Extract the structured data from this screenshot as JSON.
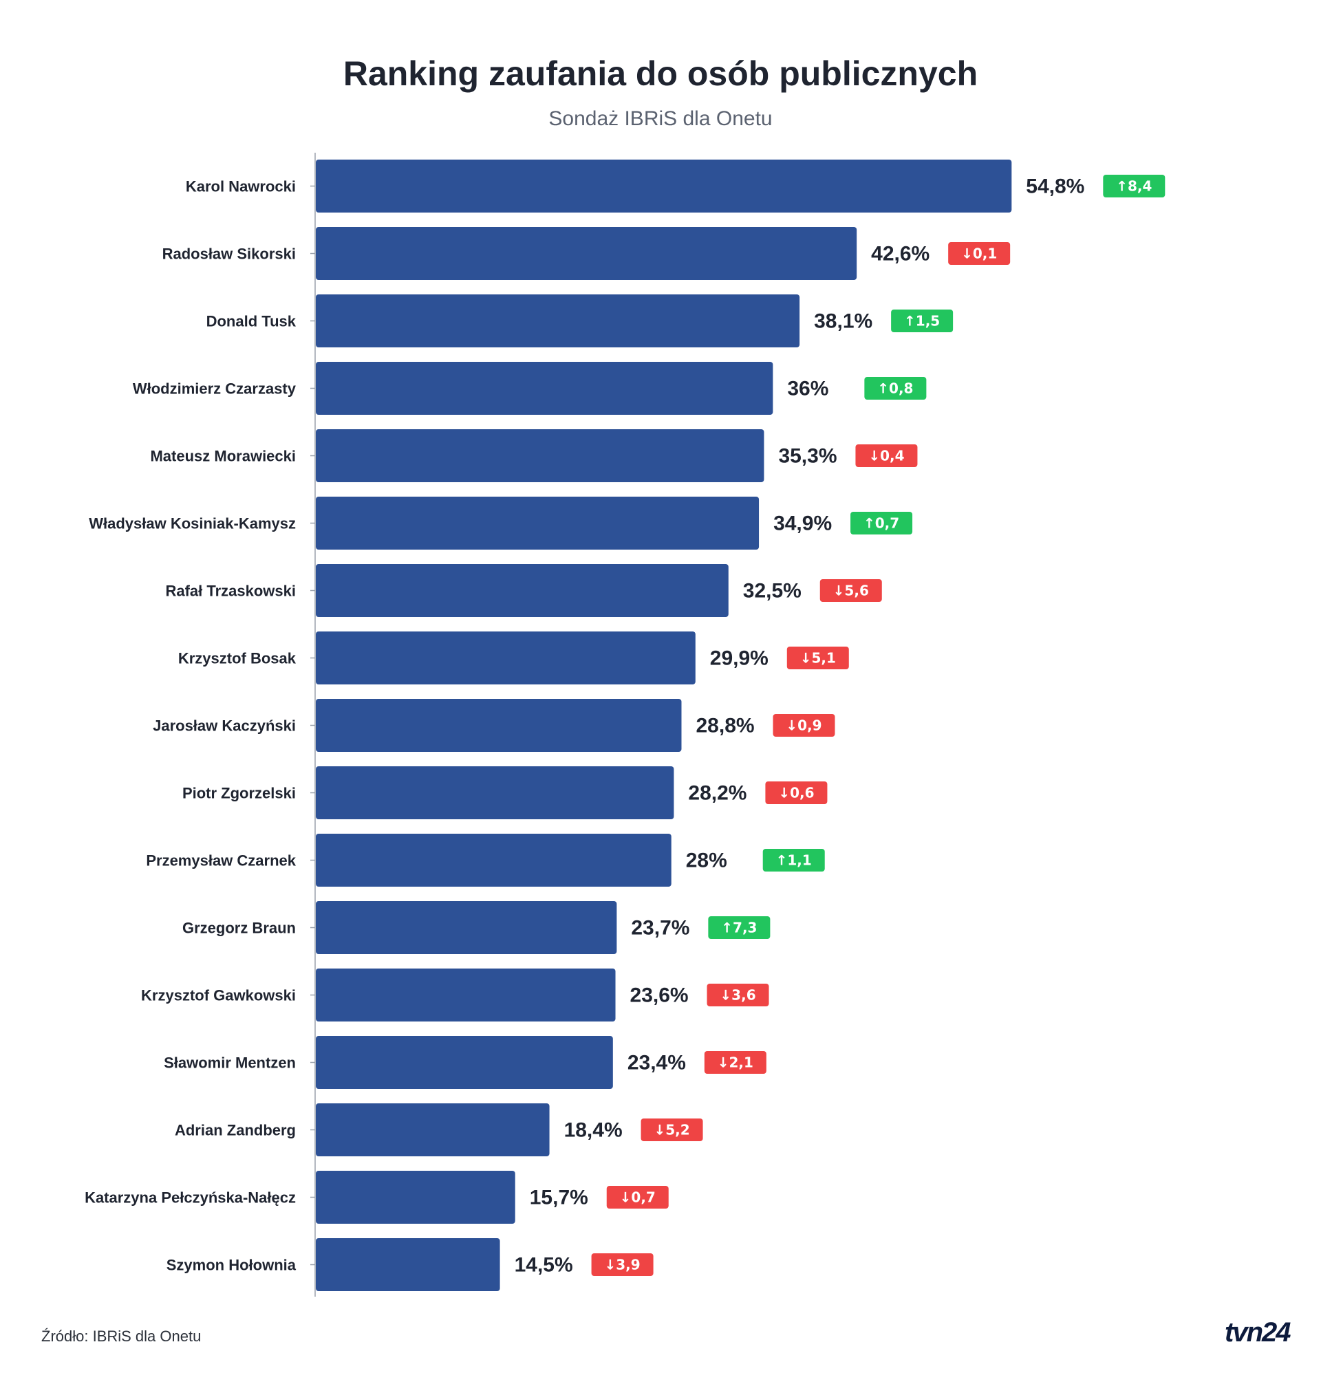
{
  "title": "Ranking zaufania do osób publicznych",
  "subtitle": "Sondaż IBRiS dla Onetu",
  "source": "Źródło: IBRiS dla Onetu",
  "logo": "tvn24",
  "colors": {
    "bar": "#2d5196",
    "up": "#22c55e",
    "down": "#ef4444",
    "axis": "#9aa1ab",
    "text": "#1f2430"
  },
  "chart_data": {
    "type": "bar",
    "orientation": "horizontal",
    "categories": [
      "Karol Nawrocki",
      "Radosław Sikorski",
      "Donald Tusk",
      "Włodzimierz Czarzasty",
      "Mateusz Morawiecki",
      "Władysław Kosiniak-Kamysz",
      "Rafał Trzaskowski",
      "Krzysztof Bosak",
      "Jarosław Kaczyński",
      "Piotr Zgorzelski",
      "Przemysław Czarnek",
      "Grzegorz Braun",
      "Krzysztof Gawkowski",
      "Sławomir Mentzen",
      "Adrian Zandberg",
      "Katarzyna Pełczyńska-Nałęcz",
      "Szymon Hołownia"
    ],
    "values": [
      54.8,
      42.6,
      38.1,
      36,
      35.3,
      34.9,
      32.5,
      29.9,
      28.8,
      28.2,
      28,
      23.7,
      23.6,
      23.4,
      18.4,
      15.7,
      14.5
    ],
    "value_labels": [
      "54,8%",
      "42,6%",
      "38,1%",
      "36%",
      "35,3%",
      "34,9%",
      "32,5%",
      "29,9%",
      "28,8%",
      "28,2%",
      "28%",
      "23,7%",
      "23,6%",
      "23,4%",
      "18,4%",
      "15,7%",
      "14,5%"
    ],
    "changes": [
      8.4,
      -0.1,
      1.5,
      0.8,
      -0.4,
      0.7,
      -5.6,
      -5.1,
      -0.9,
      -0.6,
      1.1,
      7.3,
      -3.6,
      -2.1,
      -5.2,
      -0.7,
      -3.9
    ],
    "change_labels": [
      "↑8,4",
      "↓0,1",
      "↑1,5",
      "↑0,8",
      "↓0,4",
      "↑0,7",
      "↓5,6",
      "↓5,1",
      "↓0,9",
      "↓0,6",
      "↑1,1",
      "↑7,3",
      "↓3,6",
      "↓2,1",
      "↓5,2",
      "↓0,7",
      "↓3,9"
    ],
    "xlim": [
      0,
      55
    ],
    "grid": false,
    "legend": "none"
  }
}
